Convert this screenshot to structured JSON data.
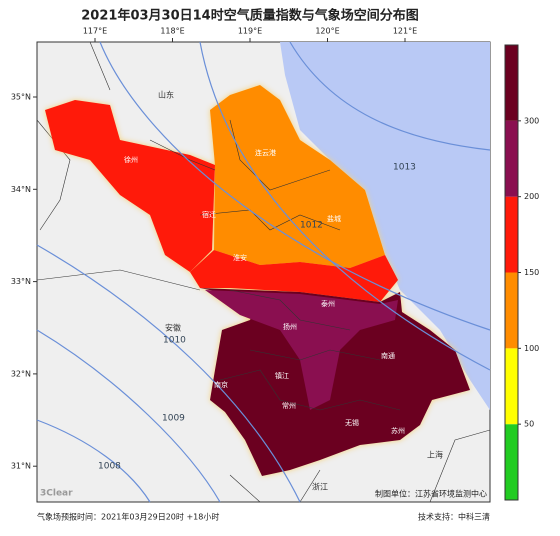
{
  "header": {
    "title": "2021年03月30日14时空气质量指数与气象场空间分布图"
  },
  "map": {
    "lon_ticks": [
      {
        "value": 117,
        "label": "117°E"
      },
      {
        "value": 118,
        "label": "118°E"
      },
      {
        "value": 119,
        "label": "119°E"
      },
      {
        "value": 120,
        "label": "120°E"
      },
      {
        "value": 121,
        "label": "121°E"
      }
    ],
    "lat_ticks": [
      {
        "value": 35,
        "label": "35°N"
      },
      {
        "value": 34,
        "label": "34°N"
      },
      {
        "value": 33,
        "label": "33°N"
      },
      {
        "value": 32,
        "label": "32°N"
      },
      {
        "value": 31,
        "label": "31°N"
      }
    ],
    "regions": [
      "山东",
      "安徽",
      "浙江",
      "上海"
    ],
    "cities": [
      "徐州",
      "连云港",
      "宿迁",
      "盐城",
      "淮安",
      "泰州",
      "扬州",
      "南通",
      "南京",
      "镇江",
      "常州",
      "无锡",
      "苏州"
    ],
    "isobars": [
      1013,
      1012,
      1010,
      1009,
      1008
    ],
    "watermark": "3Clear",
    "producer": "制图单位：江苏省环境监测中心"
  },
  "colorbar": {
    "colors": [
      "#22cc22",
      "#ffff00",
      "#ff8c00",
      "#ff1a0a",
      "#8a0f50",
      "#6b0020"
    ],
    "ticks": [
      50,
      100,
      150,
      200,
      300
    ]
  },
  "footer": {
    "left": "气象场预报时间：2021年03月29日20时 +18小时",
    "right": "技术支持：中科三清"
  }
}
